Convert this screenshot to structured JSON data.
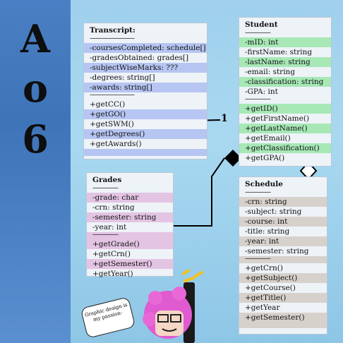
{
  "side_letters": [
    "A",
    "o",
    "6"
  ],
  "transcript": {
    "title": "Transcript:",
    "sep": "———————",
    "attributes": [
      "-coursesCompleted: schedule[]",
      "-gradesObtained: grades[]",
      "-subjectWiseMarks: ???",
      "-degrees: string[]",
      "-awards: string[]"
    ],
    "methods": [
      "+getCC()",
      "+getGO()",
      "+getSWM()",
      "+getDegrees()",
      "+getAwards()"
    ]
  },
  "student": {
    "title": "Student",
    "sep": "————",
    "attributes": [
      "-mID: int",
      "-firstName: string",
      "-lastName: string",
      "-email: string",
      "-classification: string",
      "-GPA: int"
    ],
    "methods": [
      "+getID()",
      "+getFirstName()",
      "+getLastName()",
      "+getEmail()",
      "+getClassification()",
      "+getGPA()"
    ]
  },
  "grades": {
    "title": "Grades",
    "sep": "————",
    "attributes": [
      "-grade: char",
      "-crn: string",
      "-semester: string",
      "-year: int"
    ],
    "methods": [
      "+getGrade()",
      "+getCrn()",
      "+getSemester()",
      "+getYear()"
    ]
  },
  "schedule": {
    "title": "Schedule",
    "sep": "————",
    "attributes": [
      "-crn: string",
      "-subject: string",
      "-course: int",
      "-title: string",
      "-year: int",
      "-semester: string"
    ],
    "methods": [
      "+getCrn()",
      "+getSubject()",
      "+getCourse()",
      "+getTitle()",
      "+getYear",
      "+getSemester()"
    ]
  },
  "multiplicity": [
    "1",
    "1"
  ],
  "speech_bubble": "Graphic design is my passion-",
  "colors": {
    "sidebar": "#4a7fc4",
    "background": "#a9d9f1",
    "transcript_highlight": "#b6c5f2",
    "student_highlight": "#a7e8b6",
    "grades_highlight": "#e3c4e3",
    "schedule_highlight": "#d7d1cc"
  }
}
